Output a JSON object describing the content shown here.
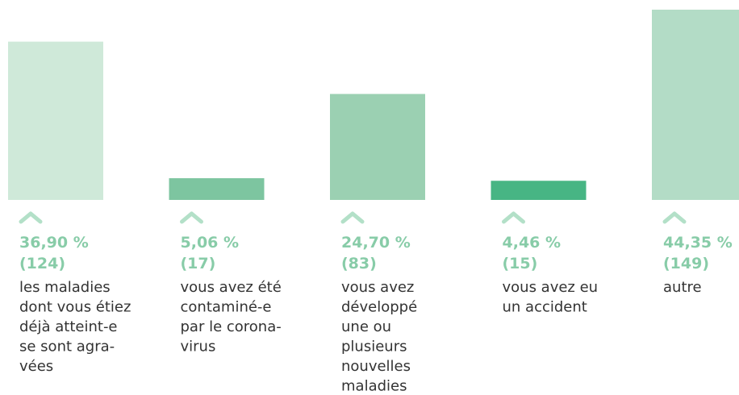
{
  "chart_data": {
    "type": "bar",
    "categories": [
      [
        "les maladies",
        "dont vous étiez",
        "déjà atteint-e",
        "se sont agra-",
        "vées"
      ],
      [
        "vous avez été",
        "contaminé-e",
        "par le corona-",
        "virus"
      ],
      [
        "vous avez",
        "développé",
        "une ou",
        "plusieurs",
        "nouvelles",
        "maladies"
      ],
      [
        "vous avez eu",
        "un accident"
      ],
      [
        "autre"
      ]
    ],
    "values": [
      36.9,
      5.06,
      24.7,
      4.46,
      44.35
    ],
    "value_labels": [
      "36,90 %",
      "5,06 %",
      "24,70 %",
      "4,46 %",
      "44,35 %"
    ],
    "counts": [
      124,
      17,
      83,
      15,
      149
    ],
    "count_labels": [
      "(124)",
      "(17)",
      "(83)",
      "(15)",
      "(149)"
    ],
    "colors": [
      "#cfe9d9",
      "#7dc5a0",
      "#9bd0b2",
      "#47b584",
      "#b3dcc6"
    ]
  }
}
